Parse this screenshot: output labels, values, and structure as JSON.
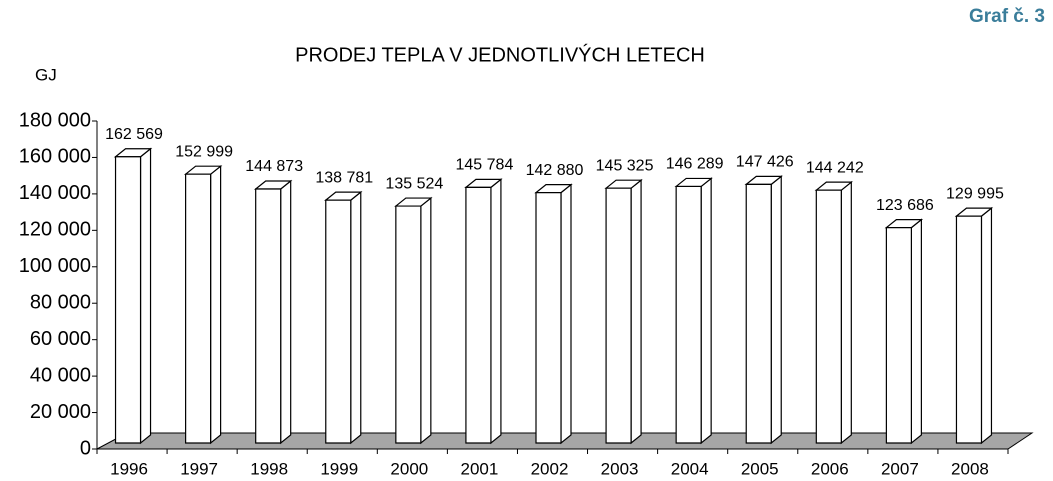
{
  "chart_data": {
    "type": "bar3d",
    "corner_label": "Graf č. 3",
    "title": "PRODEJ TEPLA V JEDNOTLIVÝCH LETECH",
    "y_label": "GJ",
    "categories": [
      "1996",
      "1997",
      "1998",
      "1999",
      "2000",
      "2001",
      "2002",
      "2003",
      "2004",
      "2005",
      "2006",
      "2007",
      "2008"
    ],
    "values": [
      162569,
      152999,
      144873,
      138781,
      135524,
      145784,
      142880,
      145325,
      146289,
      147426,
      144242,
      123686,
      129995
    ],
    "value_labels": [
      "162 569",
      "152 999",
      "144 873",
      "138 781",
      "135 524",
      "145 784",
      "142 880",
      "145 325",
      "146 289",
      "147 426",
      "144 242",
      "123 686",
      "129 995"
    ],
    "color": "#ffffff",
    "ylim": [
      0,
      180000
    ],
    "yticks": [
      0,
      {
        "value": 20000,
        "label": "20 000"
      },
      {
        "value": 40000,
        "label": "40 000"
      },
      {
        "value": 60000,
        "label": "60 000"
      },
      {
        "value": 80000,
        "label": "80 000"
      },
      {
        "value": 100000,
        "label": "100 000"
      },
      {
        "value": 120000,
        "label": "120 000"
      },
      {
        "value": 140000,
        "label": "140 000"
      },
      {
        "value": 160000,
        "label": "160 000"
      },
      {
        "value": 180000,
        "label": "180 000"
      }
    ]
  }
}
